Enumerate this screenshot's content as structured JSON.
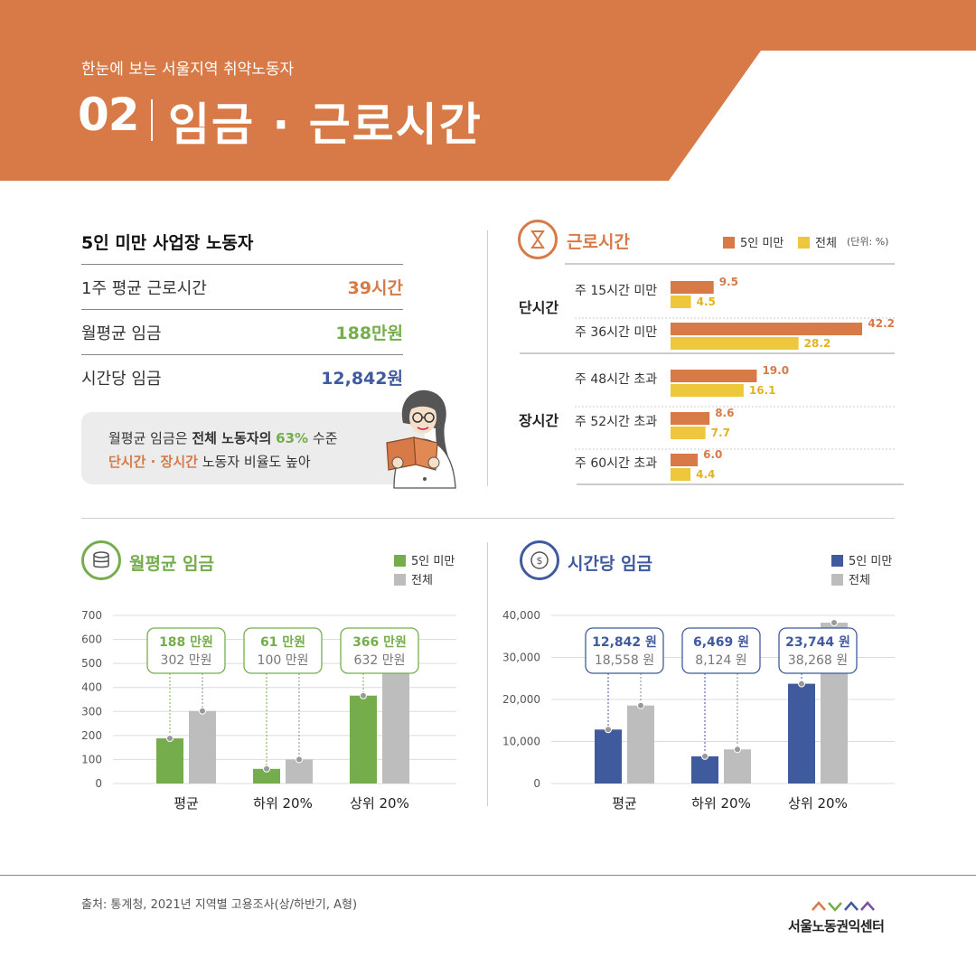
{
  "header": {
    "subtitle": "한눈에 보는 서울지역 취약노동자",
    "number": "02",
    "title": "임금 · 근로시간"
  },
  "colors": {
    "orange": "#d77a47",
    "green": "#76ad4c",
    "blue": "#3f5a9d",
    "gray": "#bdbdbd",
    "yellow": "#efc73c"
  },
  "summary": {
    "title": "5인 미만 사업장 노동자",
    "rows": [
      {
        "label": "1주 평균 근로시간",
        "value": "39시간"
      },
      {
        "label": "월평균 임금",
        "value": "188만원"
      },
      {
        "label": "시간당 임금",
        "value": "12,842원"
      }
    ],
    "note": {
      "line1_pre": "월평균 임금은 ",
      "line1_bold": "전체 노동자의",
      "line1_pct": "63%",
      "line1_post": " 수준",
      "line2_em": "단시간 · 장시간",
      "line2_post": " 노동자 비율도 높아"
    }
  },
  "hours": {
    "title": "근로시간",
    "legend": [
      "5인 미만",
      "전체"
    ],
    "unit": "(단위: %)",
    "groups": [
      {
        "label": "단시간",
        "items": [
          {
            "label": "주 15시간 미만",
            "small": 9.5,
            "total": 4.5
          },
          {
            "label": "주 36시간 미만",
            "small": 42.2,
            "total": 28.2
          }
        ]
      },
      {
        "label": "장시간",
        "items": [
          {
            "label": "주 48시간 초과",
            "small": 19.0,
            "total": 16.1
          },
          {
            "label": "주 52시간 초과",
            "small": 8.6,
            "total": 7.7
          },
          {
            "label": "주 60시간 초과",
            "small": 6.0,
            "total": 4.4
          }
        ]
      }
    ]
  },
  "chart_data": [
    {
      "type": "bar",
      "title": "근로시간",
      "unit": "(단위: %)",
      "categories": [
        "주 15시간 미만",
        "주 36시간 미만",
        "주 48시간 초과",
        "주 52시간 초과",
        "주 60시간 초과"
      ],
      "groups": [
        {
          "label": "단시간",
          "categories": [
            "주 15시간 미만",
            "주 36시간 미만"
          ]
        },
        {
          "label": "장시간",
          "categories": [
            "주 48시간 초과",
            "주 52시간 초과",
            "주 60시간 초과"
          ]
        }
      ],
      "series": [
        {
          "name": "5인 미만",
          "values": [
            9.5,
            42.2,
            19.0,
            8.6,
            6.0
          ]
        },
        {
          "name": "전체",
          "values": [
            4.5,
            28.2,
            16.1,
            7.7,
            4.4
          ]
        }
      ],
      "orientation": "horizontal"
    },
    {
      "type": "bar",
      "title": "월평균 임금",
      "categories": [
        "평균",
        "하위 20%",
        "상위 20%"
      ],
      "series": [
        {
          "name": "5인 미만",
          "values": [
            188,
            61,
            366
          ]
        },
        {
          "name": "전체",
          "values": [
            302,
            100,
            632
          ]
        }
      ],
      "labels_small": [
        "188 만원",
        "61 만원",
        "366 만원"
      ],
      "labels_total": [
        "302 만원",
        "100 만원",
        "632 만원"
      ],
      "yticks": [
        "700",
        "600",
        "500",
        "400",
        "300",
        "200",
        "100",
        "0"
      ],
      "ylim": [
        0,
        700
      ],
      "legend": "top-right",
      "grid": true
    },
    {
      "type": "bar",
      "title": "시간당 임금",
      "categories": [
        "평균",
        "하위 20%",
        "상위 20%"
      ],
      "series": [
        {
          "name": "5인 미만",
          "values": [
            12842,
            6469,
            23744
          ]
        },
        {
          "name": "전체",
          "values": [
            18558,
            8124,
            38268
          ]
        }
      ],
      "labels_small": [
        "12,842 원",
        "6,469 원",
        "23,744 원"
      ],
      "labels_total": [
        "18,558 원",
        "8,124 원",
        "38,268 원"
      ],
      "yticks": [
        "40,000",
        "30,000",
        "20,000",
        "10,000",
        "0"
      ],
      "ylim": [
        0,
        40000
      ],
      "legend": "top-right",
      "grid": true
    }
  ],
  "footer": {
    "source": "출처: 통계청, 2021년 지역별 고용조사(상/하반기, A형)",
    "logo": "서울노동권익센터"
  }
}
